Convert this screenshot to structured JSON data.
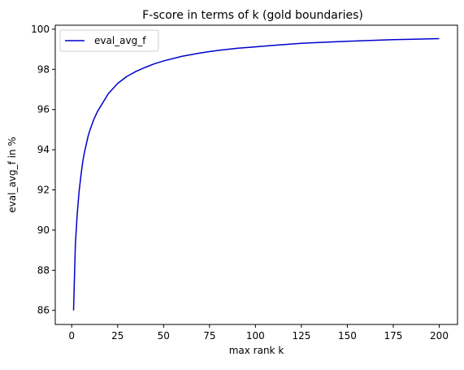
{
  "chart_data": {
    "type": "line",
    "title": "F-score in terms of k (gold boundaries)",
    "xlabel": "max rank k",
    "ylabel": "eval_avg_f in %",
    "xlim": [
      -8.95,
      209.95
    ],
    "ylim": [
      85.3,
      100.2
    ],
    "xticks": [
      0,
      25,
      50,
      75,
      100,
      125,
      150,
      175,
      200
    ],
    "yticks": [
      86,
      88,
      90,
      92,
      94,
      96,
      98,
      100
    ],
    "grid": false,
    "legend": "top-left",
    "series": [
      {
        "name": "eval_avg_f",
        "color": "#0000cc",
        "x": [
          1,
          2,
          3,
          4,
          5,
          6,
          7,
          8,
          9,
          10,
          12,
          14,
          16,
          18,
          20,
          25,
          30,
          35,
          40,
          45,
          50,
          60,
          70,
          80,
          90,
          100,
          110,
          125,
          150,
          175,
          200
        ],
        "y": [
          86.0,
          89.3,
          90.8,
          91.9,
          92.7,
          93.4,
          93.9,
          94.3,
          94.7,
          95.0,
          95.5,
          95.9,
          96.2,
          96.5,
          96.8,
          97.3,
          97.65,
          97.9,
          98.1,
          98.28,
          98.42,
          98.65,
          98.82,
          98.95,
          99.05,
          99.12,
          99.2,
          99.3,
          99.4,
          99.48,
          99.53
        ]
      }
    ]
  }
}
